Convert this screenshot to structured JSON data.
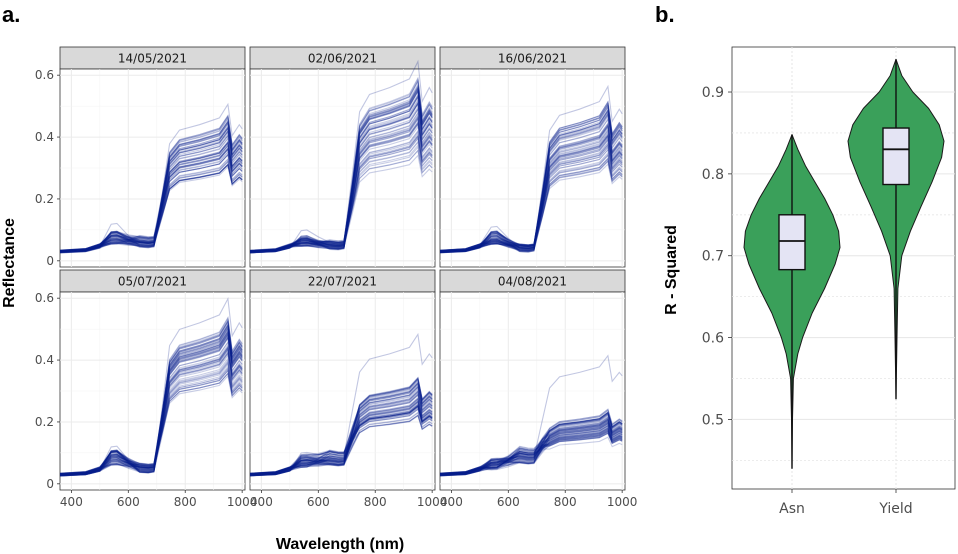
{
  "figure": {
    "panel_a_label": "a.",
    "panel_b_label": "b."
  },
  "chart_data": [
    {
      "type": "line",
      "xlabel": "Wavelength (nm)",
      "ylabel": "Reflectance",
      "xlim": [
        360,
        1010
      ],
      "ylim": [
        -0.02,
        0.62
      ],
      "x_ticks": [
        400,
        600,
        800,
        1000
      ],
      "y_ticks": [
        0,
        0.2,
        0.4,
        0.6
      ],
      "y_tick_labels": [
        "0",
        "0.2",
        "0.4",
        "0.6"
      ],
      "grid": true,
      "series_color": "#0b1e8c",
      "facets": [
        {
          "title": "14/05/2021",
          "pre": 0.03,
          "green": 0.07,
          "red": 0.06,
          "nir_low": 0.26,
          "nir_high": 0.41,
          "nir_outlier": 0.44
        },
        {
          "title": "02/06/2021",
          "pre": 0.03,
          "green": 0.06,
          "red": 0.05,
          "nir_low": 0.29,
          "nir_high": 0.52,
          "nir_outlier": 0.56
        },
        {
          "title": "16/06/2021",
          "pre": 0.03,
          "green": 0.07,
          "red": 0.04,
          "nir_low": 0.27,
          "nir_high": 0.45,
          "nir_outlier": 0.49
        },
        {
          "title": "05/07/2021",
          "pre": 0.03,
          "green": 0.08,
          "red": 0.05,
          "nir_low": 0.3,
          "nir_high": 0.47,
          "nir_outlier": 0.52
        },
        {
          "title": "22/07/2021",
          "pre": 0.03,
          "green": 0.07,
          "red": 0.08,
          "nir_low": 0.18,
          "nir_high": 0.3,
          "nir_outlier": 0.42
        },
        {
          "title": "04/08/2021",
          "pre": 0.03,
          "green": 0.06,
          "red": 0.09,
          "nir_low": 0.13,
          "nir_high": 0.21,
          "nir_outlier": 0.36
        }
      ]
    },
    {
      "type": "violin",
      "xlabel": "",
      "ylabel": "R - Squared",
      "ylim": [
        0.415,
        0.955
      ],
      "y_ticks": [
        0.5,
        0.6,
        0.7,
        0.8,
        0.9
      ],
      "y_tick_labels": [
        "0.5",
        "0.6",
        "0.7",
        "0.8",
        "0.9"
      ],
      "categories": [
        "Asn",
        "Yield"
      ],
      "grid": true,
      "violin_color": "#3aa05a",
      "box_color": "#e4e4f4",
      "groups": [
        {
          "name": "Asn",
          "min": 0.44,
          "q1": 0.683,
          "median": 0.718,
          "q3": 0.75,
          "max": 0.848,
          "density": [
            [
              0.44,
              0.0
            ],
            [
              0.5,
              0.01
            ],
            [
              0.55,
              0.03
            ],
            [
              0.58,
              0.12
            ],
            [
              0.6,
              0.22
            ],
            [
              0.63,
              0.42
            ],
            [
              0.66,
              0.68
            ],
            [
              0.69,
              0.9
            ],
            [
              0.71,
              1.0
            ],
            [
              0.73,
              0.97
            ],
            [
              0.75,
              0.85
            ],
            [
              0.77,
              0.68
            ],
            [
              0.79,
              0.48
            ],
            [
              0.81,
              0.28
            ],
            [
              0.83,
              0.12
            ],
            [
              0.848,
              0.0
            ]
          ]
        },
        {
          "name": "Yield",
          "min": 0.525,
          "q1": 0.787,
          "median": 0.83,
          "q3": 0.856,
          "max": 0.94,
          "density": [
            [
              0.525,
              0.0
            ],
            [
              0.6,
              0.02
            ],
            [
              0.66,
              0.04
            ],
            [
              0.7,
              0.12
            ],
            [
              0.73,
              0.3
            ],
            [
              0.76,
              0.52
            ],
            [
              0.79,
              0.75
            ],
            [
              0.82,
              0.95
            ],
            [
              0.84,
              1.0
            ],
            [
              0.86,
              0.9
            ],
            [
              0.88,
              0.68
            ],
            [
              0.9,
              0.35
            ],
            [
              0.92,
              0.12
            ],
            [
              0.94,
              0.0
            ]
          ]
        }
      ]
    }
  ]
}
